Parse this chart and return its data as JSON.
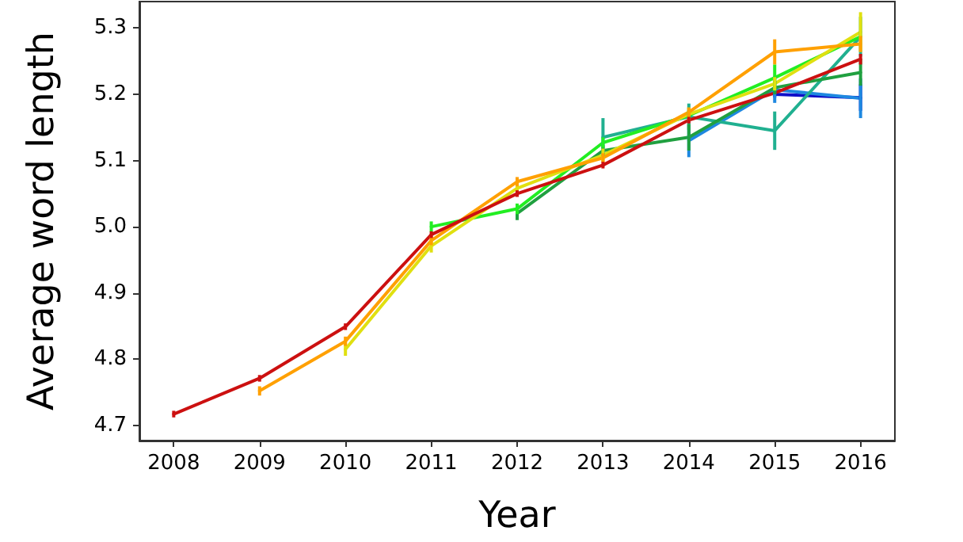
{
  "chart_data": {
    "type": "line",
    "xlabel": "Year",
    "ylabel": "Average word length",
    "marker": "none",
    "line_style": "solid",
    "xlim": [
      2007.6,
      2016.4
    ],
    "xticks": [
      2008,
      2009,
      2010,
      2011,
      2012,
      2013,
      2014,
      2015,
      2016
    ],
    "ylim": [
      4.677,
      5.34
    ],
    "yticks": [
      4.7,
      4.8,
      4.9,
      {
        "value": 5.0,
        "label": "5.0"
      },
      5.1,
      5.2,
      5.3
    ],
    "series": [
      {
        "color": "#1010c8",
        "x": [
          2015,
          2016
        ],
        "values": [
          5.2,
          5.195
        ],
        "errors": [
          0.005,
          0.02
        ]
      },
      {
        "color": "#1e88e0",
        "x": [
          2014,
          2015,
          2016
        ],
        "values": [
          5.13,
          5.207,
          5.194
        ],
        "errors": [
          0.025,
          0.02,
          0.03
        ]
      },
      {
        "color": "#20b090",
        "x": [
          2013,
          2014,
          2015,
          2016
        ],
        "values": [
          5.135,
          5.166,
          5.145,
          5.287
        ],
        "errors": [
          0.029,
          0.02,
          0.029,
          0.03
        ]
      },
      {
        "color": "#20a040",
        "x": [
          2012,
          2013,
          2014,
          2015,
          2016
        ],
        "values": [
          5.02,
          5.115,
          5.135,
          5.21,
          5.233
        ],
        "errors": [
          0.01,
          0.008,
          0.02,
          0.01,
          0.02
        ]
      },
      {
        "color": "#22ee22",
        "x": [
          2011,
          2012,
          2013,
          2014,
          2015,
          2016
        ],
        "values": [
          5.0,
          5.027,
          5.127,
          5.168,
          5.225,
          5.287
        ],
        "errors": [
          0.008,
          0.008,
          0.008,
          0.008,
          0.02,
          null
        ]
      },
      {
        "color": "#e0e010",
        "x": [
          2010,
          2011,
          2012,
          2013,
          2014,
          2015,
          2016
        ],
        "values": [
          4.815,
          4.971,
          5.058,
          5.108,
          5.17,
          5.216,
          5.294
        ],
        "errors": [
          0.01,
          0.01,
          0.008,
          0.01,
          0.01,
          0.01,
          0.03
        ]
      },
      {
        "color": "#ffa000",
        "x": [
          2009,
          2010,
          2011,
          2012,
          2013,
          2014,
          2015,
          2016
        ],
        "values": [
          4.752,
          4.827,
          4.979,
          5.068,
          5.104,
          5.173,
          5.264,
          5.276
        ],
        "errors": [
          0.007,
          0.007,
          0.007,
          0.007,
          0.007,
          0.007,
          0.019,
          0.012
        ]
      },
      {
        "color": "#cc1010",
        "x": [
          2008,
          2009,
          2010,
          2011,
          2012,
          2013,
          2014,
          2015,
          2016
        ],
        "values": [
          4.717,
          4.771,
          4.849,
          4.988,
          5.05,
          5.093,
          5.161,
          5.202,
          5.253
        ],
        "errors": [
          0.005,
          0.005,
          0.005,
          0.005,
          0.005,
          0.005,
          0.005,
          null,
          0.008
        ]
      }
    ]
  }
}
